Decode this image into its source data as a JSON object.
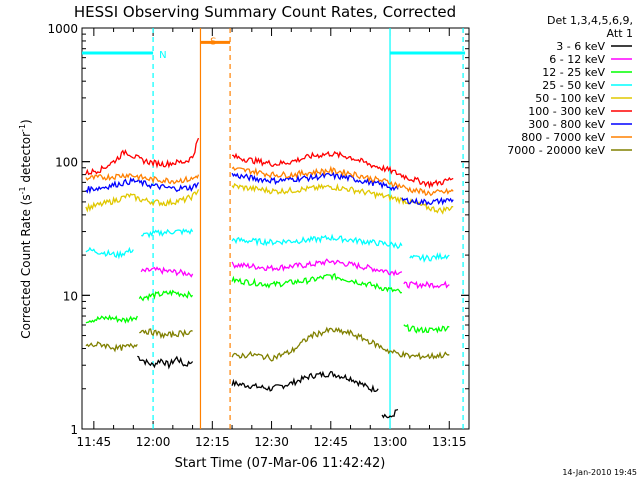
{
  "chart_data": {
    "type": "line",
    "title": "HESSI Observing Summary Count Rates, Corrected",
    "xlabel": "Start Time (07-Mar-06 11:42:42)",
    "ylabel_main": "Corrected Count Rate (s",
    "ylabel_sup1": "-1",
    "ylabel_mid": " detector",
    "ylabel_sup2": "-1",
    "ylabel_end": ")",
    "ylog": true,
    "ylim": [
      1,
      1000
    ],
    "xlim_minutes": [
      -3,
      95
    ],
    "x_tick_labels": [
      {
        "minute": 0,
        "label": "11:45"
      },
      {
        "minute": 15,
        "label": "12:00"
      },
      {
        "minute": 30,
        "label": "12:15"
      },
      {
        "minute": 45,
        "label": "12:30"
      },
      {
        "minute": 60,
        "label": "12:45"
      },
      {
        "minute": 75,
        "label": "13:00"
      },
      {
        "minute": 90,
        "label": "13:15"
      }
    ],
    "y_tick_labels": [
      {
        "value": 1,
        "label": "1"
      },
      {
        "value": 10,
        "label": "10"
      },
      {
        "value": 100,
        "label": "100"
      },
      {
        "value": 1000,
        "label": "1000"
      }
    ],
    "legend_header": [
      "Det 1,3,4,5,6,9,",
      "Att 1"
    ],
    "series": [
      {
        "name": "3 - 6 keV",
        "color": "#000000",
        "segments": [
          {
            "x": [
              11,
              13,
              15,
              17,
              19,
              21,
              23,
              25
            ],
            "y": [
              3.5,
              3.2,
              3.0,
              3.3,
              3.0,
              3.4,
              3.0,
              3.2
            ]
          },
          {
            "x": [
              35,
              40,
              45,
              50,
              55,
              60,
              65,
              70,
              72
            ],
            "y": [
              2.2,
              2.1,
              2.0,
              2.2,
              2.5,
              2.6,
              2.4,
              2.0,
              2.0
            ]
          },
          {
            "x": [
              73,
              75,
              77
            ],
            "y": [
              1.3,
              1.2,
              1.4
            ]
          }
        ]
      },
      {
        "name": "6 - 12 keV",
        "color": "#ff00ff",
        "segments": [
          {
            "x": [
              12,
              15,
              20,
              25
            ],
            "y": [
              15,
              15.5,
              15,
              14.5
            ]
          },
          {
            "x": [
              35,
              40,
              45,
              50,
              55,
              60,
              65,
              70,
              75,
              78
            ],
            "y": [
              17,
              16.5,
              16,
              16.5,
              17,
              18,
              17,
              16,
              15,
              15
            ]
          },
          {
            "x": [
              78.5,
              82,
              86,
              90
            ],
            "y": [
              12,
              12,
              12,
              12
            ]
          }
        ]
      },
      {
        "name": "12 - 25 keV",
        "color": "#00ff00",
        "segments": [
          {
            "x": [
              -2,
              4,
              8,
              11
            ],
            "y": [
              6.5,
              6.8,
              6.5,
              7
            ]
          },
          {
            "x": [
              11.5,
              15,
              20,
              25
            ],
            "y": [
              9.5,
              10,
              10.5,
              10
            ]
          },
          {
            "x": [
              35,
              40,
              45,
              50,
              55,
              60,
              65,
              70,
              75,
              78
            ],
            "y": [
              13,
              12.5,
              12,
              12.5,
              13,
              14,
              13,
              12,
              11,
              10.5
            ]
          },
          {
            "x": [
              78.5,
              82,
              86,
              90
            ],
            "y": [
              5.8,
              5.5,
              5.5,
              5.8
            ]
          }
        ]
      },
      {
        "name": "25 - 50 keV",
        "color": "#00ffff",
        "segments": [
          {
            "x": [
              -2,
              2,
              6,
              10
            ],
            "y": [
              22,
              21,
              20,
              22
            ]
          },
          {
            "x": [
              12,
              15,
              20,
              25
            ],
            "y": [
              28,
              29,
              30,
              30
            ]
          },
          {
            "x": [
              35,
              40,
              45,
              50,
              55,
              60,
              65,
              70,
              75,
              78
            ],
            "y": [
              26,
              25.5,
              25,
              25.5,
              26,
              27,
              26,
              25,
              24,
              23.5
            ]
          },
          {
            "x": [
              80,
              85,
              90
            ],
            "y": [
              19,
              19,
              20
            ]
          }
        ]
      },
      {
        "name": "50 - 100 keV",
        "color": "#e0c800",
        "segments": [
          {
            "x": [
              -2,
              2,
              6,
              9,
              12,
              15,
              18,
              20,
              23,
              25,
              26.5
            ],
            "y": [
              45,
              48,
              52,
              56,
              52,
              50,
              49,
              50,
              52,
              55,
              62
            ]
          },
          {
            "x": [
              35,
              38,
              42,
              46,
              50,
              55,
              60,
              65,
              70,
              75,
              80,
              85,
              88,
              91
            ],
            "y": [
              66,
              64,
              62,
              60,
              61,
              63,
              65,
              62,
              58,
              54,
              50,
              45,
              43,
              46
            ]
          }
        ]
      },
      {
        "name": "100 - 300 keV",
        "color": "#ff0000",
        "segments": [
          {
            "x": [
              -2,
              2,
              5,
              8,
              10,
              12,
              15,
              18,
              20,
              23,
              25,
              26.5
            ],
            "y": [
              82,
              88,
              100,
              120,
              110,
              103,
              98,
              96,
              98,
              100,
              108,
              150
            ]
          },
          {
            "x": [
              35,
              38,
              42,
              46,
              50,
              55,
              60,
              65,
              70,
              75,
              80,
              85,
              88,
              91
            ],
            "y": [
              110,
              105,
              100,
              96,
              100,
              110,
              115,
              108,
              95,
              86,
              75,
              68,
              70,
              75
            ]
          }
        ]
      },
      {
        "name": "300 - 800 keV",
        "color": "#0000ff",
        "segments": [
          {
            "x": [
              -2,
              2,
              6,
              10,
              15,
              20,
              25,
              26.5
            ],
            "y": [
              62,
              64,
              68,
              72,
              66,
              63,
              64,
              70
            ]
          },
          {
            "x": [
              35,
              38,
              42,
              46,
              50,
              55,
              60,
              65,
              70,
              75,
              77
            ],
            "y": [
              80,
              77,
              74,
              72,
              74,
              76,
              79,
              75,
              70,
              65,
              62
            ]
          },
          {
            "x": [
              78,
              82,
              86,
              91
            ],
            "y": [
              52,
              50,
              50,
              52
            ]
          }
        ]
      },
      {
        "name": "800 - 7000 keV",
        "color": "#ff8000",
        "segments": [
          {
            "x": [
              -2,
              4,
              9,
              14,
              20,
              25,
              26.5
            ],
            "y": [
              75,
              77,
              80,
              74,
              72,
              74,
              80
            ]
          },
          {
            "x": [
              35,
              40,
              45,
              50,
              55,
              60,
              65,
              70,
              75,
              80,
              85,
              91
            ],
            "y": [
              88,
              85,
              80,
              80,
              83,
              86,
              82,
              75,
              70,
              62,
              58,
              60
            ]
          }
        ]
      },
      {
        "name": "7000 - 20000 keV",
        "color": "#808000",
        "segments": [
          {
            "x": [
              -2,
              2,
              6,
              10,
              11
            ],
            "y": [
              4.2,
              4.3,
              4.0,
              4.2,
              4.3
            ]
          },
          {
            "x": [
              11.5,
              15,
              18,
              22,
              25
            ],
            "y": [
              5.5,
              5.3,
              5.0,
              5.2,
              5.4
            ]
          },
          {
            "x": [
              35,
              40,
              45,
              50,
              55,
              60,
              65,
              70,
              75,
              80,
              85,
              90
            ],
            "y": [
              3.5,
              3.6,
              3.4,
              3.8,
              5.0,
              5.5,
              5.2,
              4.5,
              3.8,
              3.5,
              3.5,
              3.6
            ]
          }
        ]
      }
    ],
    "flags": [
      {
        "label": "N",
        "color": "#00ffff",
        "segments": [
          {
            "x": [
              -3,
              15
            ],
            "y": 650
          },
          {
            "x": 15,
            "type": "dashed"
          },
          {
            "x": [
              75,
              94
            ],
            "y": 650
          },
          {
            "x": 75,
            "type": "solid"
          },
          {
            "x": 93.5,
            "type": "dashed"
          }
        ]
      },
      {
        "label": "S",
        "color": "#ff8000",
        "segments": [
          {
            "x": [
              27,
              34.5
            ],
            "y": 780
          },
          {
            "x": 27,
            "type": "solid"
          },
          {
            "x": 34.5,
            "type": "dashed"
          }
        ]
      }
    ],
    "timestamp": "14-Jan-2010 19:45"
  }
}
